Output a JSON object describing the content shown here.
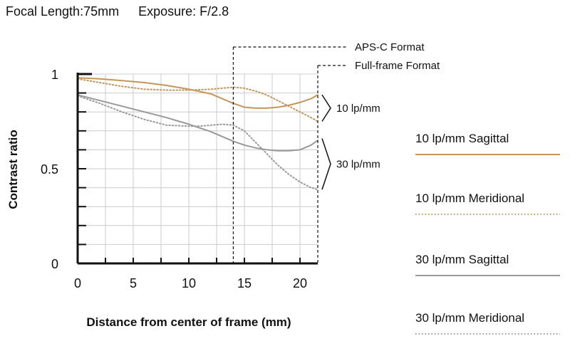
{
  "header": {
    "focal": "Focal Length:75mm",
    "exposure": "Exposure: F/2.8"
  },
  "chart_data": {
    "type": "line",
    "xlabel": "Distance from center of frame (mm)",
    "ylabel": "Contrast ratio",
    "xlim": [
      0,
      21.6
    ],
    "ylim": [
      0,
      1
    ],
    "xticks": [
      "0",
      "5",
      "10",
      "15",
      "20"
    ],
    "yticks": [
      "0",
      "0.5",
      "1"
    ],
    "grid": true,
    "formats": [
      {
        "label": "APS-C Format",
        "x": 14
      },
      {
        "label": "Full-frame Format",
        "x": 21.6
      }
    ],
    "annotations": [
      "10 lp/mm",
      "30 lp/mm"
    ],
    "series": [
      {
        "name": "10 lp/mm Sagittal",
        "color": "#c4965a",
        "style": "solid",
        "x": [
          0,
          2,
          4,
          6,
          8,
          10,
          12,
          13,
          14,
          15,
          16,
          17,
          18,
          19,
          20,
          21,
          21.6
        ],
        "y": [
          0.98,
          0.975,
          0.965,
          0.955,
          0.94,
          0.92,
          0.895,
          0.87,
          0.845,
          0.825,
          0.82,
          0.82,
          0.825,
          0.835,
          0.85,
          0.87,
          0.89
        ]
      },
      {
        "name": "10 lp/mm Meridional",
        "color": "#c4965a",
        "style": "dotted",
        "x": [
          0,
          2,
          4,
          6,
          8,
          10,
          12,
          13,
          14,
          15,
          16,
          17,
          18,
          19,
          20,
          21,
          21.6
        ],
        "y": [
          0.975,
          0.955,
          0.935,
          0.92,
          0.915,
          0.915,
          0.92,
          0.925,
          0.93,
          0.925,
          0.91,
          0.89,
          0.86,
          0.83,
          0.8,
          0.77,
          0.75
        ]
      },
      {
        "name": "30 lp/mm Sagittal",
        "color": "#999999",
        "style": "solid",
        "x": [
          0,
          2,
          4,
          6,
          8,
          10,
          12,
          13,
          14,
          15,
          16,
          17,
          18,
          19,
          20,
          21,
          21.6
        ],
        "y": [
          0.89,
          0.86,
          0.83,
          0.8,
          0.77,
          0.735,
          0.695,
          0.67,
          0.645,
          0.625,
          0.61,
          0.6,
          0.595,
          0.595,
          0.6,
          0.625,
          0.65
        ]
      },
      {
        "name": "30 lp/mm Meridional",
        "color": "#999999",
        "style": "dotted",
        "x": [
          0,
          2,
          4,
          6,
          8,
          10,
          11,
          12,
          13,
          14,
          15,
          16,
          17,
          18,
          19,
          20,
          21,
          21.6
        ],
        "y": [
          0.885,
          0.845,
          0.8,
          0.76,
          0.73,
          0.725,
          0.725,
          0.73,
          0.735,
          0.73,
          0.7,
          0.64,
          0.58,
          0.52,
          0.47,
          0.43,
          0.4,
          0.39
        ]
      }
    ]
  },
  "colors": {
    "tan": "#c4965a",
    "gray": "#999999",
    "grid": "#cccccc",
    "axis": "#111111"
  }
}
